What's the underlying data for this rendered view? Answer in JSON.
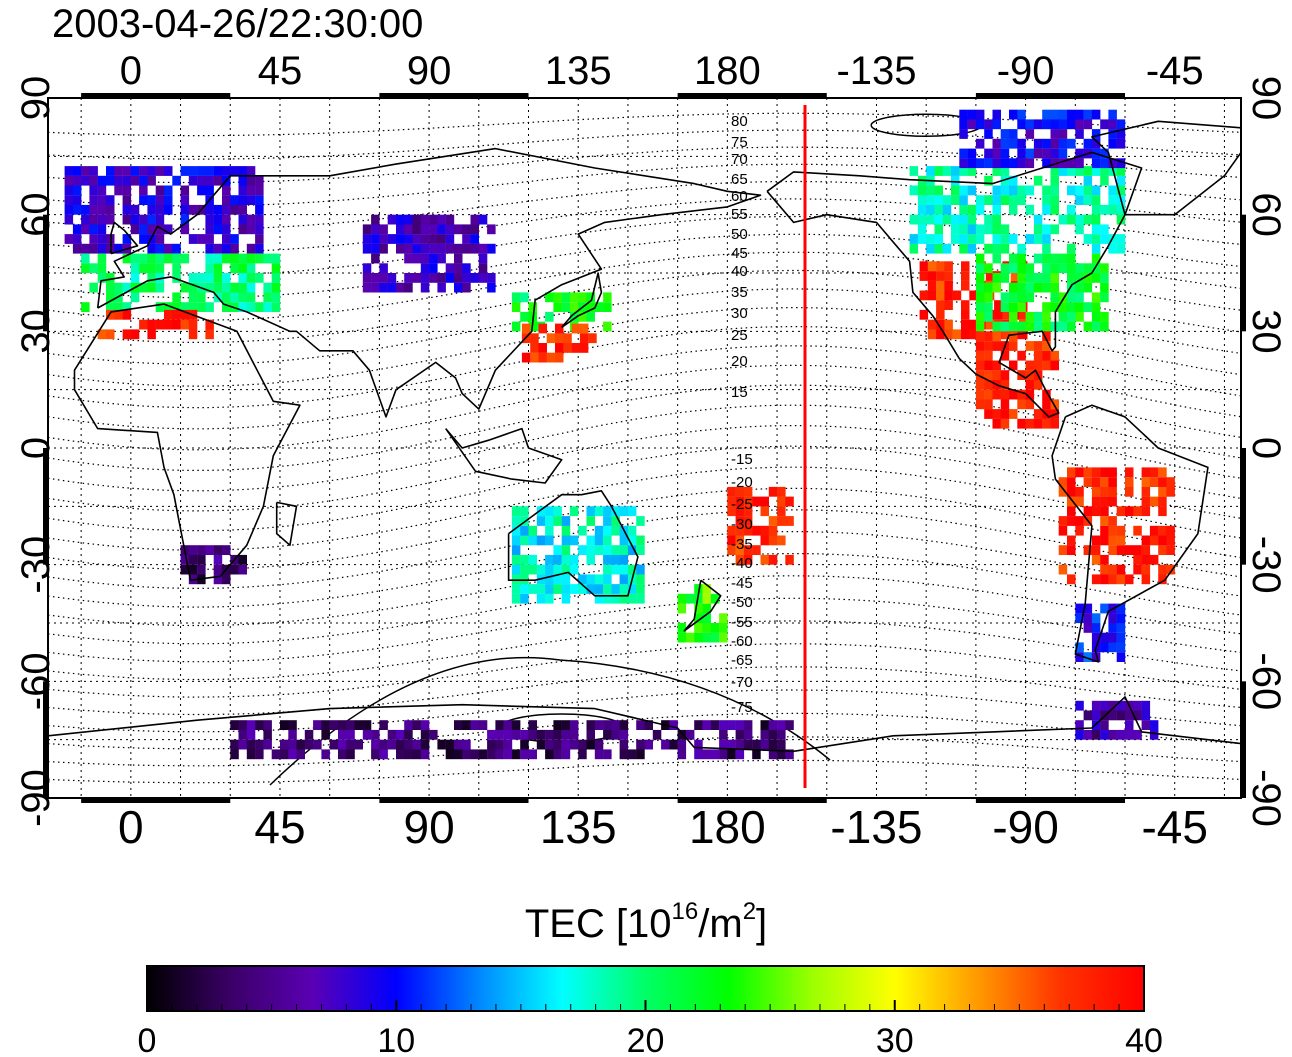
{
  "title": "2003-04-26/22:30:00",
  "map": {
    "lon_ticks": [
      "0",
      "45",
      "90",
      "135",
      "180",
      "-135",
      "-90",
      "-45"
    ],
    "lat_ticks": [
      "90",
      "60",
      "30",
      "0",
      "-30",
      "-60",
      "-90"
    ],
    "contour_labels_north": [
      "80",
      "75",
      "70",
      "65",
      "60",
      "55",
      "50",
      "45",
      "40",
      "35",
      "30",
      "25",
      "20",
      "15"
    ],
    "contour_labels_south": [
      "-15",
      "-20",
      "-25",
      "-30",
      "-35",
      "-40",
      "-45",
      "-50",
      "-55",
      "-60",
      "-65",
      "-70",
      "-75"
    ],
    "terminator_color": "#ff0000",
    "coastline_color": "#000000"
  },
  "colorbar": {
    "label_main": "TEC  [10",
    "label_exp1": "16",
    "label_mid": "/m",
    "label_exp2": "2",
    "label_end": "]",
    "tick_labels": [
      "0",
      "10",
      "20",
      "30",
      "40"
    ],
    "range": [
      0,
      40
    ],
    "colormap": [
      "#000000",
      "#3a0066",
      "#5a00b4",
      "#0000ff",
      "#0088ff",
      "#00ffff",
      "#00ff66",
      "#00ff00",
      "#9cff00",
      "#ffff00",
      "#ff9900",
      "#ff3300",
      "#ff0000"
    ]
  },
  "chart_data": {
    "type": "heatmap",
    "title": "2003-04-26/22:30:00",
    "colorbar_label": "TEC [10^16/m^2]",
    "value_range": [
      0,
      40
    ],
    "x_axis": "longitude",
    "y_axis": "latitude",
    "xlim": [
      -25,
      335
    ],
    "ylim": [
      -90,
      90
    ],
    "regions": [
      {
        "lon": [
          -20,
          40
        ],
        "lat": [
          50,
          72
        ],
        "tec": 8
      },
      {
        "lon": [
          -15,
          45
        ],
        "lat": [
          35,
          50
        ],
        "tec": 20
      },
      {
        "lon": [
          -10,
          25
        ],
        "lat": [
          28,
          34
        ],
        "tec": 38
      },
      {
        "lon": [
          115,
          145
        ],
        "lat": [
          30,
          40
        ],
        "tec": 22
      },
      {
        "lon": [
          118,
          140
        ],
        "lat": [
          22,
          30
        ],
        "tec": 38
      },
      {
        "lon": [
          238,
          270
        ],
        "lat": [
          28,
          46
        ],
        "tec": 38
      },
      {
        "lon": [
          255,
          295
        ],
        "lat": [
          30,
          50
        ],
        "tec": 22
      },
      {
        "lon": [
          235,
          300
        ],
        "lat": [
          50,
          72
        ],
        "tec": 18
      },
      {
        "lon": [
          250,
          300
        ],
        "lat": [
          72,
          85
        ],
        "tec": 9
      },
      {
        "lon": [
          255,
          280
        ],
        "lat": [
          5,
          30
        ],
        "tec": 38
      },
      {
        "lon": [
          280,
          315
        ],
        "lat": [
          -35,
          -5
        ],
        "tec": 38
      },
      {
        "lon": [
          285,
          300
        ],
        "lat": [
          -55,
          -40
        ],
        "tec": 10
      },
      {
        "lon": [
          285,
          310
        ],
        "lat": [
          -75,
          -65
        ],
        "tec": 6
      },
      {
        "lon": [
          115,
          155
        ],
        "lat": [
          -40,
          -15
        ],
        "tec": 17
      },
      {
        "lon": [
          165,
          180
        ],
        "lat": [
          -50,
          -35
        ],
        "tec": 24
      },
      {
        "lon": [
          180,
          200
        ],
        "lat": [
          -30,
          -10
        ],
        "tec": 38
      },
      {
        "lon": [
          15,
          35
        ],
        "lat": [
          -35,
          -25
        ],
        "tec": 4
      },
      {
        "lon": [
          30,
          200
        ],
        "lat": [
          -80,
          -70
        ],
        "tec": 4
      },
      {
        "lon": [
          70,
          110
        ],
        "lat": [
          40,
          60
        ],
        "tec": 7
      }
    ],
    "terminator_lon": 203
  }
}
